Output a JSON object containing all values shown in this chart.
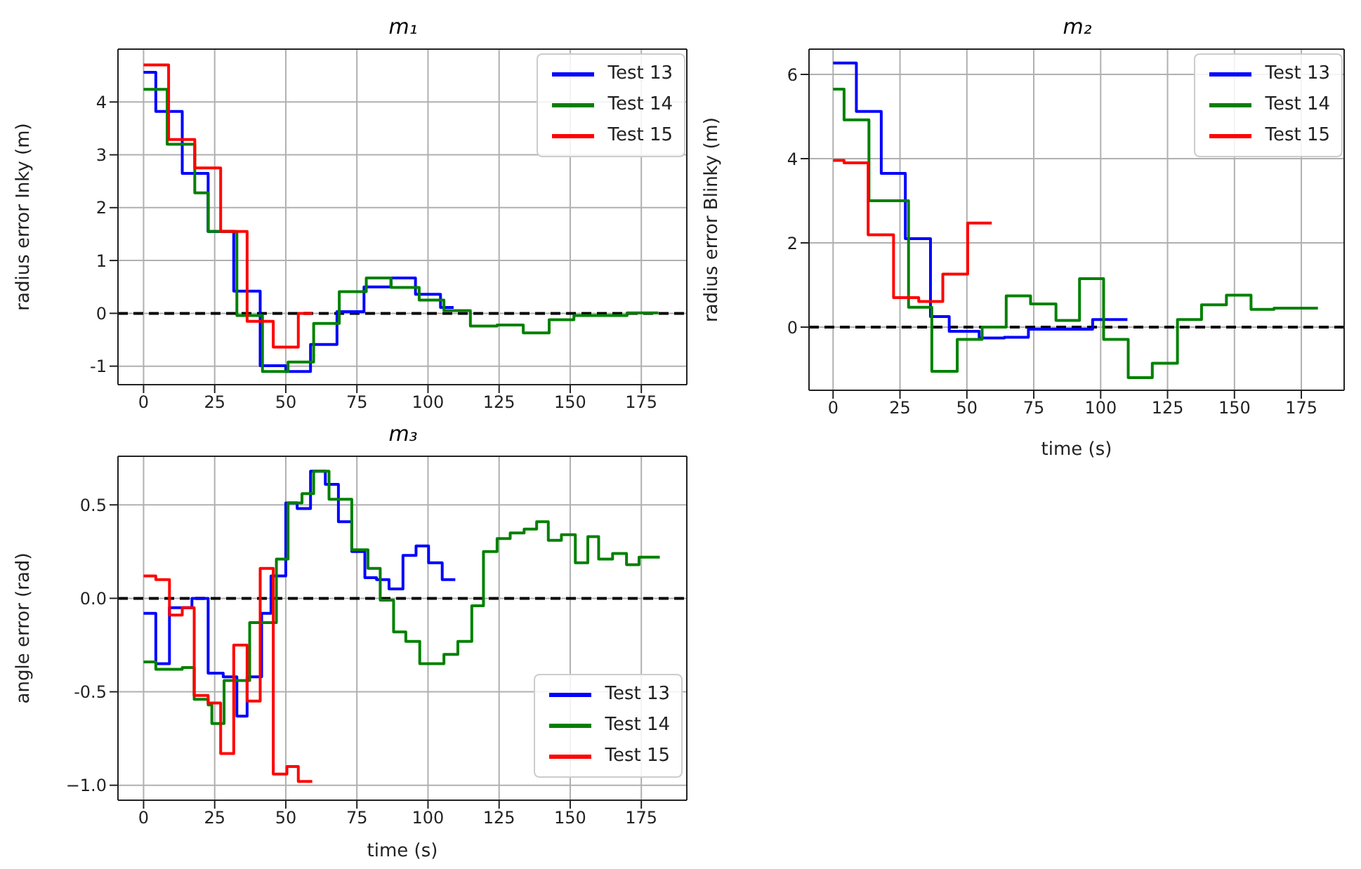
{
  "chart_data": [
    {
      "type": "step",
      "title": "m₁",
      "ylabel": "radius error Inky (m)",
      "xlim": [
        -9,
        191
      ],
      "xticks": [
        0,
        25,
        50,
        75,
        100,
        125,
        150,
        175
      ],
      "ylim": [
        -1.35,
        5.0
      ],
      "yticks": [
        -1,
        0,
        1,
        2,
        3,
        4
      ],
      "grid": true,
      "legend": "top right",
      "ref_lines": [
        {
          "axis": "y",
          "value": 0,
          "color": "#000000",
          "line_style": "dashed"
        }
      ],
      "series": [
        {
          "name": "Test 13",
          "color": "#0000ff",
          "x": [
            0,
            4.3,
            13.6,
            22.7,
            31.7,
            41,
            50,
            58.7,
            68,
            77.5,
            87,
            95.6,
            104.4,
            109
          ],
          "values": [
            4.56,
            3.82,
            2.65,
            1.55,
            0.42,
            -0.99,
            -1.1,
            -0.59,
            0.03,
            0.5,
            0.67,
            0.36,
            0.11,
            0.11
          ]
        },
        {
          "name": "Test 14",
          "color": "#008000",
          "x": [
            0,
            8.3,
            18,
            22.7,
            32.8,
            41.8,
            50.8,
            59.8,
            68.8,
            78.3,
            87,
            96.9,
            105.6,
            114.9,
            124.3,
            133.5,
            142.6,
            151.3,
            170,
            181
          ],
          "values": [
            4.24,
            3.2,
            2.28,
            1.55,
            -0.04,
            -1.1,
            -0.92,
            -0.19,
            0.41,
            0.67,
            0.49,
            0.25,
            0.05,
            -0.24,
            -0.22,
            -0.37,
            -0.12,
            -0.04,
            0.01,
            0.01
          ]
        },
        {
          "name": "Test 15",
          "color": "#ff0000",
          "x": [
            0,
            8.8,
            18,
            27.1,
            36.4,
            45.6,
            54.4,
            59.3
          ],
          "values": [
            4.7,
            3.29,
            2.75,
            1.55,
            -0.15,
            -0.64,
            0.0,
            0.0
          ]
        }
      ]
    },
    {
      "type": "step",
      "title": "m₂",
      "xlabel": "time (s)",
      "ylabel": "radius error Blinky (m)",
      "xlim": [
        -9,
        191
      ],
      "xticks": [
        0,
        25,
        50,
        75,
        100,
        125,
        150,
        175
      ],
      "ylim": [
        -1.5,
        6.6
      ],
      "yticks": [
        0,
        2,
        4,
        6
      ],
      "grid": true,
      "legend": "top right",
      "ref_lines": [
        {
          "axis": "y",
          "value": 0,
          "color": "#000000",
          "line_style": "dashed"
        }
      ],
      "series": [
        {
          "name": "Test 13",
          "color": "#0000ff",
          "x": [
            0,
            8.7,
            18,
            27,
            36.4,
            43.4,
            54.6,
            64,
            73,
            97,
            110
          ],
          "values": [
            6.27,
            5.12,
            3.65,
            2.1,
            0.25,
            -0.1,
            -0.26,
            -0.24,
            -0.05,
            0.18,
            0.18
          ]
        },
        {
          "name": "Test 14",
          "color": "#008000",
          "x": [
            0,
            4.1,
            13.4,
            28.2,
            36.9,
            46.4,
            55.7,
            64.7,
            73.8,
            83.3,
            92.1,
            101.1,
            110.3,
            119.3,
            128.7,
            137.7,
            147,
            156.2,
            164.8,
            181.2
          ],
          "values": [
            5.65,
            4.92,
            3.0,
            0.47,
            -1.05,
            -0.29,
            0.0,
            0.74,
            0.55,
            0.16,
            1.15,
            -0.29,
            -1.2,
            -0.86,
            0.18,
            0.53,
            0.76,
            0.42,
            0.45,
            0.45
          ]
        },
        {
          "name": "Test 15",
          "color": "#ff0000",
          "x": [
            0,
            4.1,
            13.1,
            22.6,
            32,
            41,
            50.3,
            59.3
          ],
          "values": [
            3.96,
            3.9,
            2.19,
            0.7,
            0.61,
            1.26,
            2.47,
            2.47
          ]
        }
      ]
    },
    {
      "type": "step",
      "title": "m₃",
      "xlabel": "time (s)",
      "ylabel": "angle error (rad)",
      "xlim": [
        -9,
        191
      ],
      "xticks": [
        0,
        25,
        50,
        75,
        100,
        125,
        150,
        175
      ],
      "ylim": [
        -1.08,
        0.76
      ],
      "yticks": [
        {
          "value": -1,
          "label": "−1.0"
        },
        -0.5,
        {
          "value": 0,
          "label": "0.0"
        },
        0.5
      ],
      "grid": true,
      "legend": "bottom right",
      "ref_lines": [
        {
          "axis": "y",
          "value": 0,
          "color": "#000000",
          "line_style": "dashed"
        }
      ],
      "series": [
        {
          "name": "Test 13",
          "color": "#0000ff",
          "x": [
            0,
            4.3,
            9.1,
            17,
            22.7,
            28,
            32.8,
            36.4,
            41.5,
            44.8,
            50,
            54,
            58.7,
            63.9,
            68.5,
            73.2,
            77.8,
            81.9,
            86.3,
            91.2,
            95.8,
            100.2,
            105,
            109.6
          ],
          "values": [
            -0.08,
            -0.35,
            -0.05,
            0.0,
            -0.4,
            -0.42,
            -0.63,
            -0.42,
            -0.08,
            0.12,
            0.51,
            0.48,
            0.68,
            0.61,
            0.41,
            0.25,
            0.11,
            0.1,
            0.05,
            0.23,
            0.28,
            0.19,
            0.1,
            0.1
          ]
        },
        {
          "name": "Test 14",
          "color": "#008000",
          "x": [
            0,
            4.3,
            13.6,
            17.8,
            22.7,
            24,
            28.3,
            37.3,
            46.7,
            50.8,
            55.7,
            59.8,
            65.2,
            73.2,
            78.9,
            83.2,
            87.9,
            92.2,
            97.1,
            105.6,
            110.5,
            115.4,
            119.5,
            124.3,
            128.9,
            133.8,
            138.2,
            142.3,
            146.9,
            151.8,
            156.2,
            160,
            164.9,
            169.8,
            174.2,
            181.5
          ],
          "values": [
            -0.34,
            -0.38,
            -0.37,
            -0.54,
            -0.57,
            -0.67,
            -0.44,
            -0.13,
            0.21,
            0.51,
            0.56,
            0.68,
            0.53,
            0.26,
            0.16,
            -0.01,
            -0.18,
            -0.23,
            -0.35,
            -0.3,
            -0.23,
            -0.04,
            0.25,
            0.32,
            0.35,
            0.37,
            0.41,
            0.31,
            0.34,
            0.19,
            0.33,
            0.21,
            0.24,
            0.18,
            0.22,
            0.22
          ]
        },
        {
          "name": "Test 15",
          "color": "#ff0000",
          "x": [
            0,
            4.3,
            9.1,
            13.6,
            17.8,
            22.7,
            27.1,
            31.7,
            36.4,
            41,
            45.6,
            50.4,
            54.4,
            59.3
          ],
          "values": [
            0.12,
            0.1,
            -0.09,
            -0.05,
            -0.52,
            -0.56,
            -0.83,
            -0.25,
            -0.55,
            0.16,
            -0.94,
            -0.9,
            -0.98,
            -0.98
          ]
        }
      ]
    }
  ]
}
